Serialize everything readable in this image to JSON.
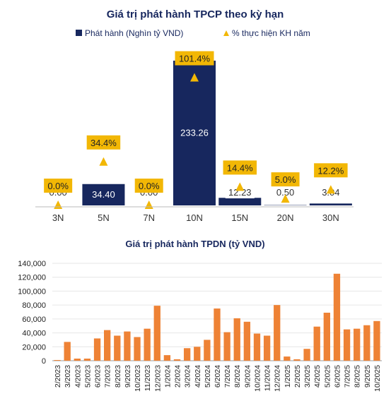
{
  "chart_data": [
    {
      "type": "bar",
      "title": "Giá trị phát hành TPCP theo kỳ hạn",
      "categories": [
        "3N",
        "5N",
        "7N",
        "10N",
        "15N",
        "20N",
        "30N"
      ],
      "series": [
        {
          "name": "Phát hành (Nghìn tỷ VND)",
          "values": [
            0.0,
            34.4,
            0.0,
            233.26,
            12.23,
            0.5,
            3.04
          ],
          "labels": [
            "0.00",
            "34.40",
            "0.00",
            "233.26",
            "12.23",
            "0.50",
            "3.04"
          ],
          "color": "#17275e"
        },
        {
          "name": "% thực hiện KH năm",
          "values": [
            0.0,
            34.4,
            0.0,
            101.4,
            14.4,
            5.0,
            12.2
          ],
          "labels": [
            "0.0%",
            "34.4%",
            "0.0%",
            "101.4%",
            "14.4%",
            "5.0%",
            "12.2%"
          ],
          "color": "#f2b705"
        }
      ],
      "ylim": [
        0,
        240
      ]
    },
    {
      "type": "bar",
      "title": "Giá trị phát hành TPDN (tỷ VND)",
      "categories": [
        "2/2023",
        "3/2023",
        "4/2023",
        "5/2023",
        "6/2023",
        "7/2023",
        "8/2023",
        "9/2023",
        "10/2023",
        "11/2023",
        "12/2023",
        "1/2024",
        "2/2024",
        "3/2024",
        "4/2024",
        "5/2024",
        "6/2024",
        "7/2024",
        "8/2024",
        "9/2024",
        "10/2024",
        "11/2024",
        "12/2024",
        "1/2025",
        "2/2025",
        "3/2025",
        "4/2025",
        "5/2025",
        "6/2025",
        "7/2025",
        "8/2025",
        "9/2025",
        "10/2025"
      ],
      "values": [
        1000,
        27000,
        3000,
        3000,
        32000,
        44000,
        36000,
        42000,
        34000,
        46000,
        79000,
        8000,
        2000,
        18000,
        20000,
        30000,
        75000,
        41000,
        61000,
        56000,
        39000,
        36000,
        80000,
        6000,
        2000,
        17000,
        49000,
        69000,
        125000,
        45000,
        46000,
        51000,
        57000
      ],
      "ylim": [
        0,
        140000
      ],
      "yticks": [
        "0",
        "20,000",
        "40,000",
        "60,000",
        "80,000",
        "100,000",
        "120,000",
        "140,000"
      ],
      "color": "#ee8235"
    }
  ]
}
